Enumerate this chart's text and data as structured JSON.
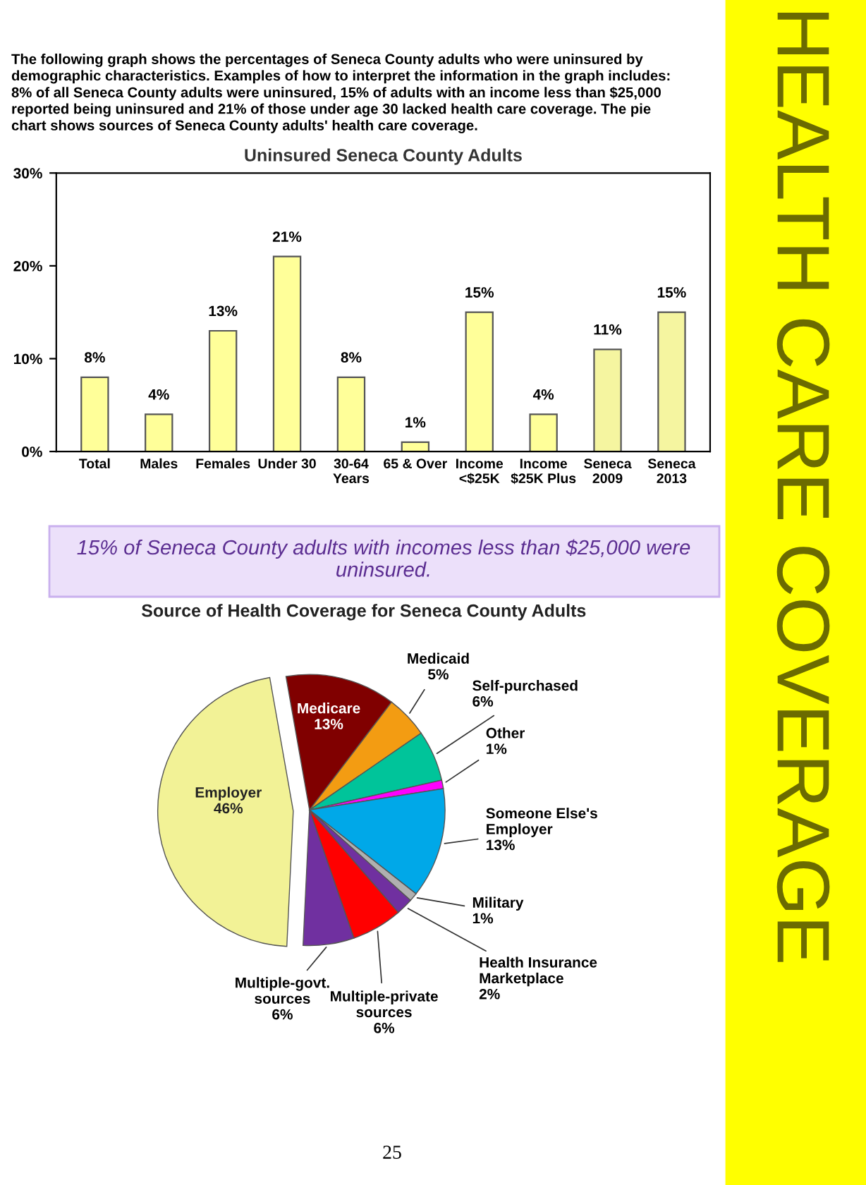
{
  "chart_data": [
    {
      "type": "bar",
      "title": "Uninsured Seneca County Adults",
      "categories": [
        "Total",
        "Males",
        "Females",
        "Under 30",
        "30-64\nYears",
        "65 & Over",
        "Income\n<$25K",
        "Income\n$25K Plus",
        "Seneca\n2009",
        "Seneca\n2013"
      ],
      "values": [
        8,
        4,
        13,
        21,
        8,
        1,
        15,
        4,
        11,
        15
      ],
      "value_labels": [
        "8%",
        "4%",
        "13%",
        "21%",
        "8%",
        "1%",
        "15%",
        "4%",
        "11%",
        "15%"
      ],
      "colors": [
        "#ffff99",
        "#ffff99",
        "#ffff99",
        "#ffff99",
        "#ffff99",
        "#ffff99",
        "#ffff99",
        "#ffff99",
        "#f5f5a0",
        "#f5f5a0"
      ],
      "ylim": [
        0,
        30
      ],
      "yticks": [
        {
          "value": 0,
          "label": "0%"
        },
        {
          "value": 10,
          "label": "10%"
        },
        {
          "value": 20,
          "label": "20%"
        },
        {
          "value": 30,
          "label": "30%"
        }
      ],
      "grid": false,
      "annotations": [
        "The following graph shows the percentages of Seneca County adults who were uninsured by\ndemographic characteristics. Examples of how to interpret the information in the graph includes:\n8% of all Seneca County adults were uninsured, 15% of adults with an income less than $25,000\nreported being uninsured and 21% of those under age 30 lacked health care coverage. The pie\nchart shows sources of Seneca County adults' health care coverage.",
        "15% of Seneca County adults with incomes less than $25,000 were\nuninsured.",
        "HEALTH CARE COVERAGE",
        "25"
      ]
    },
    {
      "type": "pie",
      "title": "Source of Health Coverage for Seneca County Adults",
      "categories": [
        "Medicare",
        "Medicaid",
        "Self-purchased",
        "Other",
        "Someone Else's\nEmployer",
        "Military",
        "Health Insurance\nMarketplace",
        "Multiple-private\nsources",
        "Multiple-govt.\nsources",
        "Employer"
      ],
      "values": [
        13,
        5,
        6,
        1,
        13,
        1,
        2,
        6,
        6,
        46
      ],
      "value_labels": [
        "13%",
        "5%",
        "6%",
        "1%",
        "13%",
        "1%",
        "2%",
        "6%",
        "6%",
        "46%"
      ],
      "colors": [
        "#800000",
        "#f39c12",
        "#00c49a",
        "#ff00ff",
        "#00a8e8",
        "#b0b0b0",
        "#7030a0",
        "#ff0000",
        "#7030a0",
        "#f2f296"
      ]
    }
  ]
}
